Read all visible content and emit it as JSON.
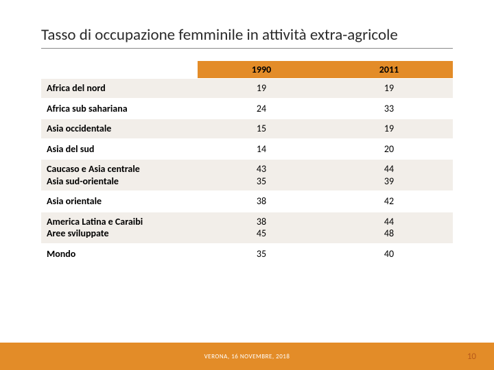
{
  "title": "Tasso di occupazione femminile in attività extra-agricole",
  "table": {
    "columns": [
      "",
      "1990",
      "2011"
    ],
    "rows": [
      {
        "label": "Africa del nord",
        "v1990": "19",
        "v2011": "19"
      },
      {
        "label": "Africa sub sahariana",
        "v1990": "24",
        "v2011": "33"
      },
      {
        "label": "Asia occidentale",
        "v1990": "15",
        "v2011": "19"
      },
      {
        "label": "Asia del sud",
        "v1990": "14",
        "v2011": "20"
      },
      {
        "label": "Caucaso e Asia centrale\nAsia sud-orientale",
        "v1990": "43\n35",
        "v2011": "44\n39"
      },
      {
        "label": "Asia orientale",
        "v1990": "38",
        "v2011": "42"
      },
      {
        "label": "America Latina e Caraibi\nAree sviluppate",
        "v1990": "38\n45",
        "v2011": "44\n48"
      },
      {
        "label": "Mondo",
        "v1990": "35",
        "v2011": "40"
      }
    ],
    "header_bg": "#e38c28",
    "row_alt_bg": "#f2eee9",
    "row_bg": "#ffffff",
    "label_fontweight": "700",
    "fontsize": 14
  },
  "footer": {
    "text": "VERONA, 16 NOVEMBRE, 2018",
    "page_number": "10",
    "bar_color": "#e38c28"
  }
}
